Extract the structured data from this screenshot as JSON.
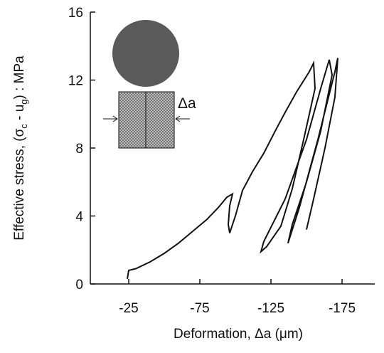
{
  "chart_data": {
    "type": "line",
    "x_label": "Deformation, Δa (μm)",
    "y_label": [
      "Effective stress, (σ",
      "c",
      " - u",
      "g",
      ") : MPa"
    ],
    "inset_label": "Δa",
    "xlim": [
      2,
      -198
    ],
    "xticks": [
      -25,
      -75,
      -125,
      -175
    ],
    "ylim": [
      0,
      16
    ],
    "yticks": [
      0,
      4,
      8,
      12,
      16
    ],
    "series": [
      {
        "color": "#111111",
        "x": [
          -24,
          -25,
          -30,
          -40,
          -50,
          -60,
          -70,
          -80,
          -88,
          -94,
          -98,
          -96,
          -95,
          -96,
          -100,
          -105,
          -112,
          -120,
          -128,
          -135,
          -143,
          -152,
          -155,
          -156,
          -148,
          -140,
          -132,
          -122,
          -118,
          -120,
          -135,
          -150,
          -160,
          -166,
          -168,
          -160,
          -150,
          -140,
          -137,
          -145,
          -158,
          -170,
          -172,
          -170,
          -163,
          -155,
          -150
        ],
        "values": [
          0.3,
          0.8,
          0.9,
          1.3,
          1.8,
          2.4,
          3.1,
          3.8,
          4.5,
          5.1,
          5.3,
          4.6,
          3.5,
          3.0,
          4.0,
          5.5,
          6.6,
          7.7,
          9.0,
          10.1,
          11.3,
          12.5,
          13.0,
          11.5,
          8.5,
          5.6,
          3.4,
          2.2,
          1.9,
          2.5,
          5,
          8.5,
          11.5,
          13.2,
          12.3,
          9,
          6,
          3.5,
          2.4,
          4.5,
          8.5,
          12.5,
          13.3,
          11,
          8,
          5,
          3.2
        ]
      }
    ]
  }
}
